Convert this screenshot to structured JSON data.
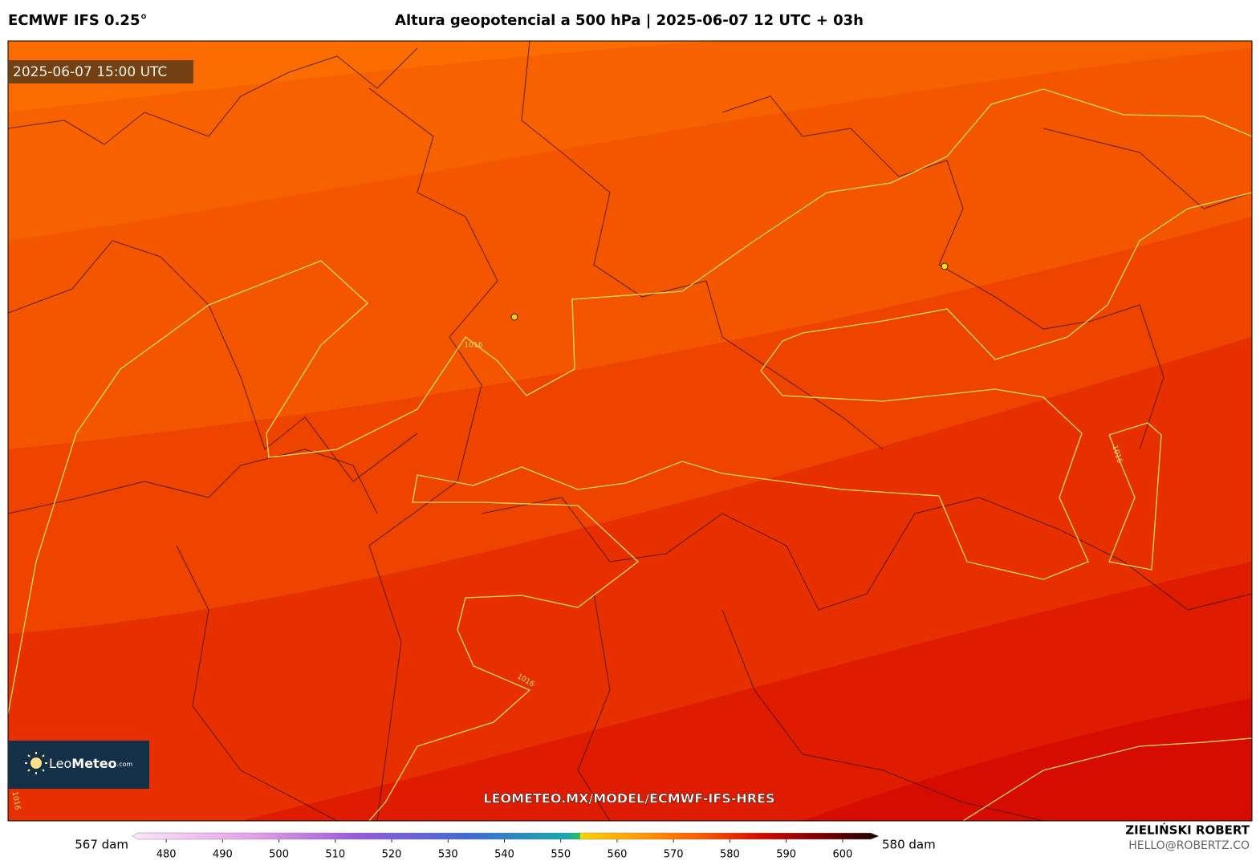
{
  "header": {
    "left_title": "ECMWF IFS 0.25°",
    "center_title": "Altura geopotencial a 500 hPa | 2025-06-07 12 UTC + 03h"
  },
  "map": {
    "timestamp": "2025-06-07 15:00 UTC",
    "isobar_labels": [
      1016,
      1016,
      1016,
      1016
    ],
    "url": "LEOMETEO.MX/MODEL/ECMWF-IFS-HRES"
  },
  "logo": {
    "brand_light": "Leo",
    "brand_bold": "Meteo",
    "suffix": ".com"
  },
  "colorbar": {
    "min_label": "567 dam",
    "max_label": "580 dam",
    "range": [
      475,
      605
    ],
    "ticks": [
      480,
      490,
      500,
      510,
      520,
      530,
      540,
      550,
      560,
      570,
      580,
      590,
      600
    ]
  },
  "author": {
    "name": "ZIELIŃSKI ROBERT",
    "email": "HELLO@ROBERTZ.CO"
  }
}
